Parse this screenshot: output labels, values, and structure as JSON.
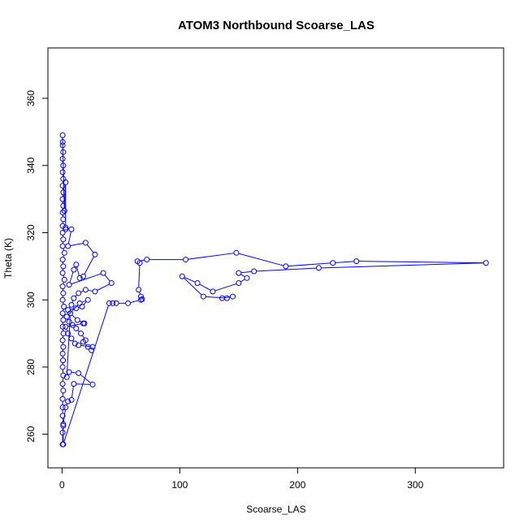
{
  "chart_data": {
    "type": "line",
    "title": "ATOM3 Northbound Scoarse_LAS",
    "xlabel": "Scoarse_LAS",
    "ylabel": "Theta (K)",
    "xlim": [
      -12,
      375
    ],
    "ylim": [
      250,
      375
    ],
    "x_ticks": [
      0,
      100,
      200,
      300
    ],
    "y_ticks": [
      260,
      280,
      300,
      320,
      340,
      360
    ],
    "x_tick_labels": [
      "0",
      "100",
      "200",
      "300"
    ],
    "y_tick_labels": [
      "260",
      "280",
      "300",
      "320",
      "340",
      "360"
    ],
    "grid": false,
    "legend": "none",
    "series_color": "#0000ff",
    "points": [
      [
        0.5,
        257
      ],
      [
        0.5,
        260.5
      ],
      [
        1,
        262.5
      ],
      [
        0.5,
        265.5
      ],
      [
        0.5,
        268
      ],
      [
        0.5,
        270.5
      ],
      [
        1,
        273
      ],
      [
        0.5,
        275
      ],
      [
        1,
        277.5
      ],
      [
        0.5,
        280
      ],
      [
        0.8,
        282
      ],
      [
        0.5,
        284
      ],
      [
        1,
        286
      ],
      [
        0.5,
        288
      ],
      [
        1.2,
        290
      ],
      [
        0.5,
        292
      ],
      [
        1,
        294
      ],
      [
        0.5,
        296
      ],
      [
        1.5,
        298
      ],
      [
        0.5,
        300
      ],
      [
        1,
        302
      ],
      [
        0.5,
        304
      ],
      [
        2,
        306
      ],
      [
        0.5,
        308
      ],
      [
        1,
        310
      ],
      [
        0.5,
        312
      ],
      [
        2,
        314
      ],
      [
        0.5,
        316
      ],
      [
        1,
        318
      ],
      [
        0.5,
        320
      ],
      [
        3,
        321
      ],
      [
        0.5,
        322
      ],
      [
        1,
        324
      ],
      [
        0.5,
        326
      ],
      [
        1,
        328
      ],
      [
        0.5,
        330
      ],
      [
        1,
        332
      ],
      [
        0.5,
        334
      ],
      [
        1,
        336
      ],
      [
        0.5,
        338
      ],
      [
        1,
        340
      ],
      [
        0.5,
        342
      ],
      [
        1,
        344
      ],
      [
        0.5,
        346
      ],
      [
        0.5,
        349
      ],
      [
        0.5,
        347
      ],
      [
        2,
        326.5
      ],
      [
        3,
        335
      ],
      [
        3,
        321.5
      ],
      [
        8,
        321
      ],
      [
        5,
        316
      ],
      [
        20,
        317
      ],
      [
        28,
        313.5
      ],
      [
        18,
        307
      ],
      [
        15,
        306.5
      ],
      [
        12,
        310.5
      ],
      [
        10,
        309
      ],
      [
        6,
        304.5
      ],
      [
        35,
        308
      ],
      [
        42,
        305
      ],
      [
        28,
        302.5
      ],
      [
        20,
        303
      ],
      [
        14,
        302
      ],
      [
        10,
        300.5
      ],
      [
        8,
        298.5
      ],
      [
        5,
        297
      ],
      [
        12,
        297.5
      ],
      [
        17,
        298
      ],
      [
        22,
        300
      ],
      [
        15,
        299
      ],
      [
        4,
        295
      ],
      [
        6,
        293.5
      ],
      [
        9,
        292.5
      ],
      [
        12,
        291.5
      ],
      [
        16,
        290
      ],
      [
        20,
        288
      ],
      [
        18,
        287.5
      ],
      [
        22,
        286
      ],
      [
        25,
        285
      ],
      [
        26,
        286
      ],
      [
        14,
        286.5
      ],
      [
        11,
        287
      ],
      [
        8,
        288.5
      ],
      [
        5,
        290
      ],
      [
        3,
        292
      ],
      [
        18,
        293
      ],
      [
        19,
        293
      ],
      [
        13,
        294
      ],
      [
        7,
        296
      ],
      [
        4,
        277
      ],
      [
        6,
        278.5
      ],
      [
        14,
        278.2
      ],
      [
        26,
        274.8
      ],
      [
        10,
        275
      ],
      [
        8,
        270.2
      ],
      [
        5,
        269.8
      ],
      [
        3,
        268
      ],
      [
        1,
        263
      ],
      [
        1,
        257
      ],
      [
        40,
        299
      ],
      [
        43,
        299
      ],
      [
        46,
        299
      ],
      [
        56,
        299
      ],
      [
        67,
        300
      ],
      [
        68,
        300.2
      ],
      [
        67,
        301
      ],
      [
        65,
        303
      ],
      [
        66,
        311
      ],
      [
        64,
        311.5
      ],
      [
        72,
        312
      ],
      [
        105,
        312
      ],
      [
        148,
        314
      ],
      [
        190,
        310
      ],
      [
        230,
        311
      ],
      [
        250,
        311.5
      ],
      [
        360,
        311
      ],
      [
        218,
        309.5
      ],
      [
        163,
        308.5
      ],
      [
        150,
        308
      ],
      [
        157,
        306.5
      ],
      [
        150,
        305
      ],
      [
        128,
        302.5
      ],
      [
        115,
        305
      ],
      [
        102,
        307
      ],
      [
        120,
        301
      ],
      [
        140,
        300.5
      ],
      [
        136,
        300.5
      ],
      [
        145,
        301
      ]
    ]
  }
}
